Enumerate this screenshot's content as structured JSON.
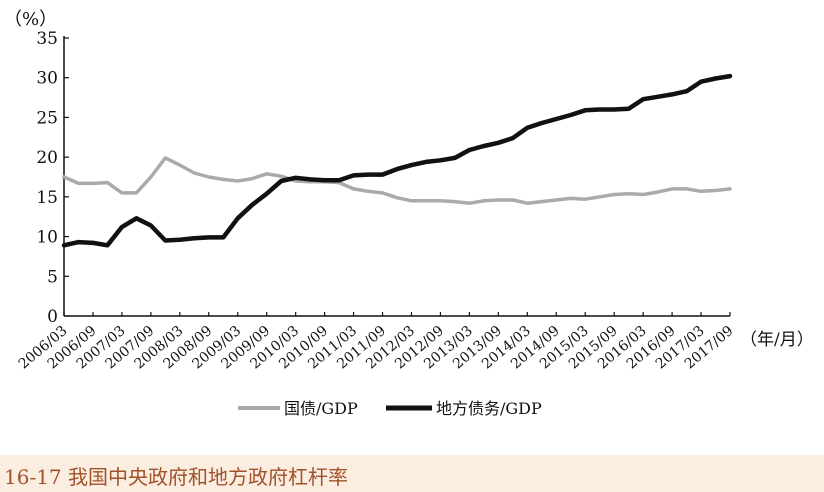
{
  "chart_data": {
    "type": "line",
    "y_unit_label": "（%）",
    "x_unit_label": "（年/月）",
    "ylim": [
      0,
      35
    ],
    "yticks": [
      0,
      5,
      10,
      15,
      20,
      25,
      30,
      35
    ],
    "grid": false,
    "legend_position": "bottom-center",
    "categories": [
      "2006/03",
      "2006/09",
      "2007/03",
      "2007/09",
      "2008/03",
      "2008/09",
      "2009/03",
      "2009/09",
      "2010/03",
      "2010/09",
      "2011/03",
      "2011/09",
      "2012/03",
      "2012/09",
      "2013/03",
      "2013/09",
      "2014/03",
      "2014/09",
      "2015/03",
      "2015/09",
      "2016/03",
      "2016/09",
      "2017/03",
      "2017/09"
    ],
    "series": [
      {
        "name": "国债/GDP",
        "color": "#aaaaaa",
        "points": [
          [
            "2006/03",
            17.5
          ],
          [
            "2006/06",
            16.7
          ],
          [
            "2006/09",
            16.7
          ],
          [
            "2006/12",
            16.8
          ],
          [
            "2007/03",
            15.5
          ],
          [
            "2007/06",
            15.5
          ],
          [
            "2007/09",
            17.5
          ],
          [
            "2007/12",
            19.9
          ],
          [
            "2008/03",
            19.0
          ],
          [
            "2008/06",
            18.0
          ],
          [
            "2008/09",
            17.5
          ],
          [
            "2008/12",
            17.2
          ],
          [
            "2009/03",
            17.0
          ],
          [
            "2009/06",
            17.3
          ],
          [
            "2009/09",
            17.9
          ],
          [
            "2009/12",
            17.6
          ],
          [
            "2010/03",
            17.0
          ],
          [
            "2010/06",
            16.9
          ],
          [
            "2010/09",
            16.9
          ],
          [
            "2010/12",
            16.8
          ],
          [
            "2011/03",
            16.0
          ],
          [
            "2011/06",
            15.7
          ],
          [
            "2011/09",
            15.5
          ],
          [
            "2011/12",
            14.9
          ],
          [
            "2012/03",
            14.5
          ],
          [
            "2012/06",
            14.5
          ],
          [
            "2012/09",
            14.5
          ],
          [
            "2012/12",
            14.4
          ],
          [
            "2013/03",
            14.2
          ],
          [
            "2013/06",
            14.5
          ],
          [
            "2013/09",
            14.6
          ],
          [
            "2013/12",
            14.6
          ],
          [
            "2014/03",
            14.2
          ],
          [
            "2014/06",
            14.4
          ],
          [
            "2014/09",
            14.6
          ],
          [
            "2014/12",
            14.8
          ],
          [
            "2015/03",
            14.7
          ],
          [
            "2015/06",
            15.0
          ],
          [
            "2015/09",
            15.3
          ],
          [
            "2015/12",
            15.4
          ],
          [
            "2016/03",
            15.3
          ],
          [
            "2016/06",
            15.6
          ],
          [
            "2016/09",
            16.0
          ],
          [
            "2016/12",
            16.0
          ],
          [
            "2017/03",
            15.7
          ],
          [
            "2017/06",
            15.8
          ],
          [
            "2017/09",
            16.0
          ]
        ]
      },
      {
        "name": "地方债务/GDP",
        "color": "#111111",
        "points": [
          [
            "2006/03",
            8.9
          ],
          [
            "2006/06",
            9.3
          ],
          [
            "2006/09",
            9.2
          ],
          [
            "2006/12",
            8.9
          ],
          [
            "2007/03",
            11.2
          ],
          [
            "2007/06",
            12.3
          ],
          [
            "2007/09",
            11.4
          ],
          [
            "2007/12",
            9.5
          ],
          [
            "2008/03",
            9.6
          ],
          [
            "2008/06",
            9.8
          ],
          [
            "2008/09",
            9.9
          ],
          [
            "2008/12",
            9.9
          ],
          [
            "2009/03",
            12.3
          ],
          [
            "2009/06",
            14.0
          ],
          [
            "2009/09",
            15.4
          ],
          [
            "2009/12",
            17.0
          ],
          [
            "2010/03",
            17.4
          ],
          [
            "2010/06",
            17.2
          ],
          [
            "2010/09",
            17.1
          ],
          [
            "2010/12",
            17.1
          ],
          [
            "2011/03",
            17.7
          ],
          [
            "2011/06",
            17.8
          ],
          [
            "2011/09",
            17.8
          ],
          [
            "2011/12",
            18.5
          ],
          [
            "2012/03",
            19.0
          ],
          [
            "2012/06",
            19.4
          ],
          [
            "2012/09",
            19.6
          ],
          [
            "2012/12",
            19.9
          ],
          [
            "2013/03",
            20.9
          ],
          [
            "2013/06",
            21.4
          ],
          [
            "2013/09",
            21.8
          ],
          [
            "2013/12",
            22.4
          ],
          [
            "2014/03",
            23.7
          ],
          [
            "2014/06",
            24.3
          ],
          [
            "2014/09",
            24.8
          ],
          [
            "2014/12",
            25.3
          ],
          [
            "2015/03",
            25.9
          ],
          [
            "2015/06",
            26.0
          ],
          [
            "2015/09",
            26.0
          ],
          [
            "2015/12",
            26.1
          ],
          [
            "2016/03",
            27.3
          ],
          [
            "2016/06",
            27.6
          ],
          [
            "2016/09",
            27.9
          ],
          [
            "2016/12",
            28.3
          ],
          [
            "2017/03",
            29.5
          ],
          [
            "2017/06",
            29.9
          ],
          [
            "2017/09",
            30.2
          ]
        ]
      }
    ]
  },
  "caption": "16-17 我国中央政府和地方政府杠杆率"
}
